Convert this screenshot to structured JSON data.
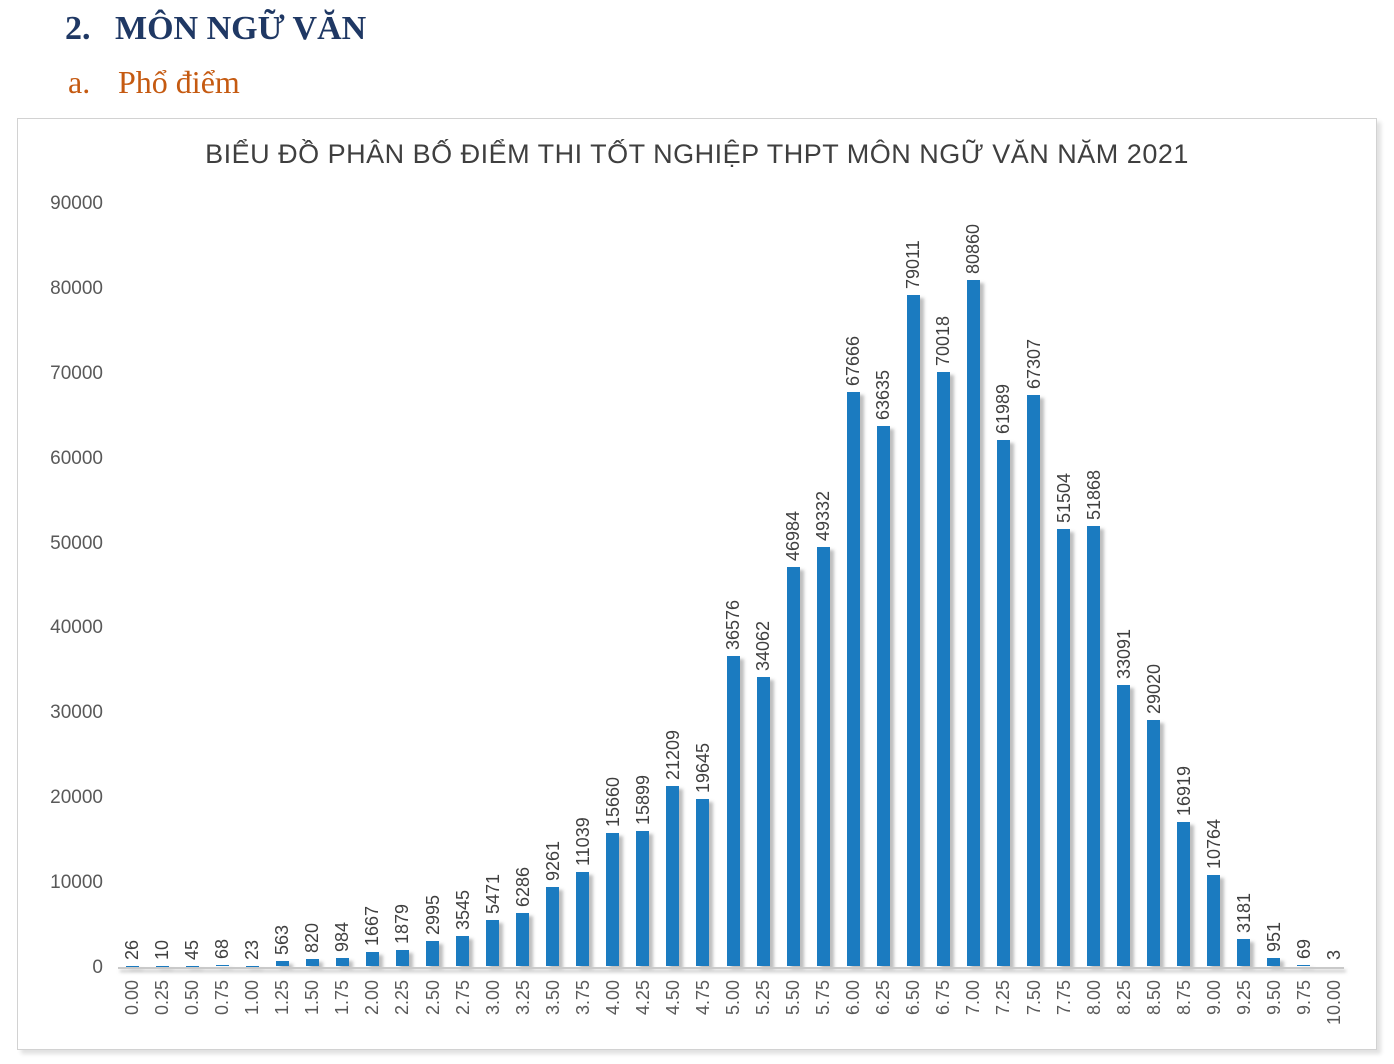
{
  "heading": {
    "section_number": "2.",
    "section_title": "MÔN NGỮ VĂN",
    "subsection_letter": "a.",
    "subsection_title": "Phổ điểm"
  },
  "colors": {
    "section_heading": "#1F3864",
    "subsection_heading": "#C55A11",
    "bar": "#1B7BC0",
    "value_label": "#3F3F3F",
    "axis_text": "#595959",
    "chart_title": "#3F3F3F"
  },
  "chart_data": {
    "type": "bar",
    "title": "BIỂU ĐỒ PHÂN BỐ ĐIỂM THI TỐT NGHIỆP THPT MÔN NGỮ VĂN NĂM 2021",
    "xlabel": "",
    "ylabel": "",
    "categories": [
      "0.00",
      "0.25",
      "0.50",
      "0.75",
      "1.00",
      "1.25",
      "1.50",
      "1.75",
      "2.00",
      "2.25",
      "2.50",
      "2.75",
      "3.00",
      "3.25",
      "3.50",
      "3.75",
      "4.00",
      "4.25",
      "4.50",
      "4.75",
      "5.00",
      "5.25",
      "5.50",
      "5.75",
      "6.00",
      "6.25",
      "6.50",
      "6.75",
      "7.00",
      "7.25",
      "7.50",
      "7.75",
      "8.00",
      "8.25",
      "8.50",
      "8.75",
      "9.00",
      "9.25",
      "9.50",
      "9.75",
      "10.00"
    ],
    "values": [
      26,
      10,
      45,
      68,
      23,
      563,
      820,
      984,
      1667,
      1879,
      2995,
      3545,
      5471,
      6286,
      9261,
      11039,
      15660,
      15899,
      21209,
      19645,
      36576,
      34062,
      46984,
      49332,
      67666,
      63635,
      79011,
      70018,
      80860,
      61989,
      67307,
      51504,
      51868,
      33091,
      29020,
      16919,
      10764,
      3181,
      951,
      69,
      3
    ],
    "ylim": [
      0,
      90000
    ],
    "yticks": [
      0,
      10000,
      20000,
      30000,
      40000,
      50000,
      60000,
      70000,
      80000,
      90000
    ],
    "grid": false,
    "legend": "none",
    "bar_labels": true,
    "bar_label_rotation_deg": 90,
    "xtick_rotation_deg": 90
  }
}
